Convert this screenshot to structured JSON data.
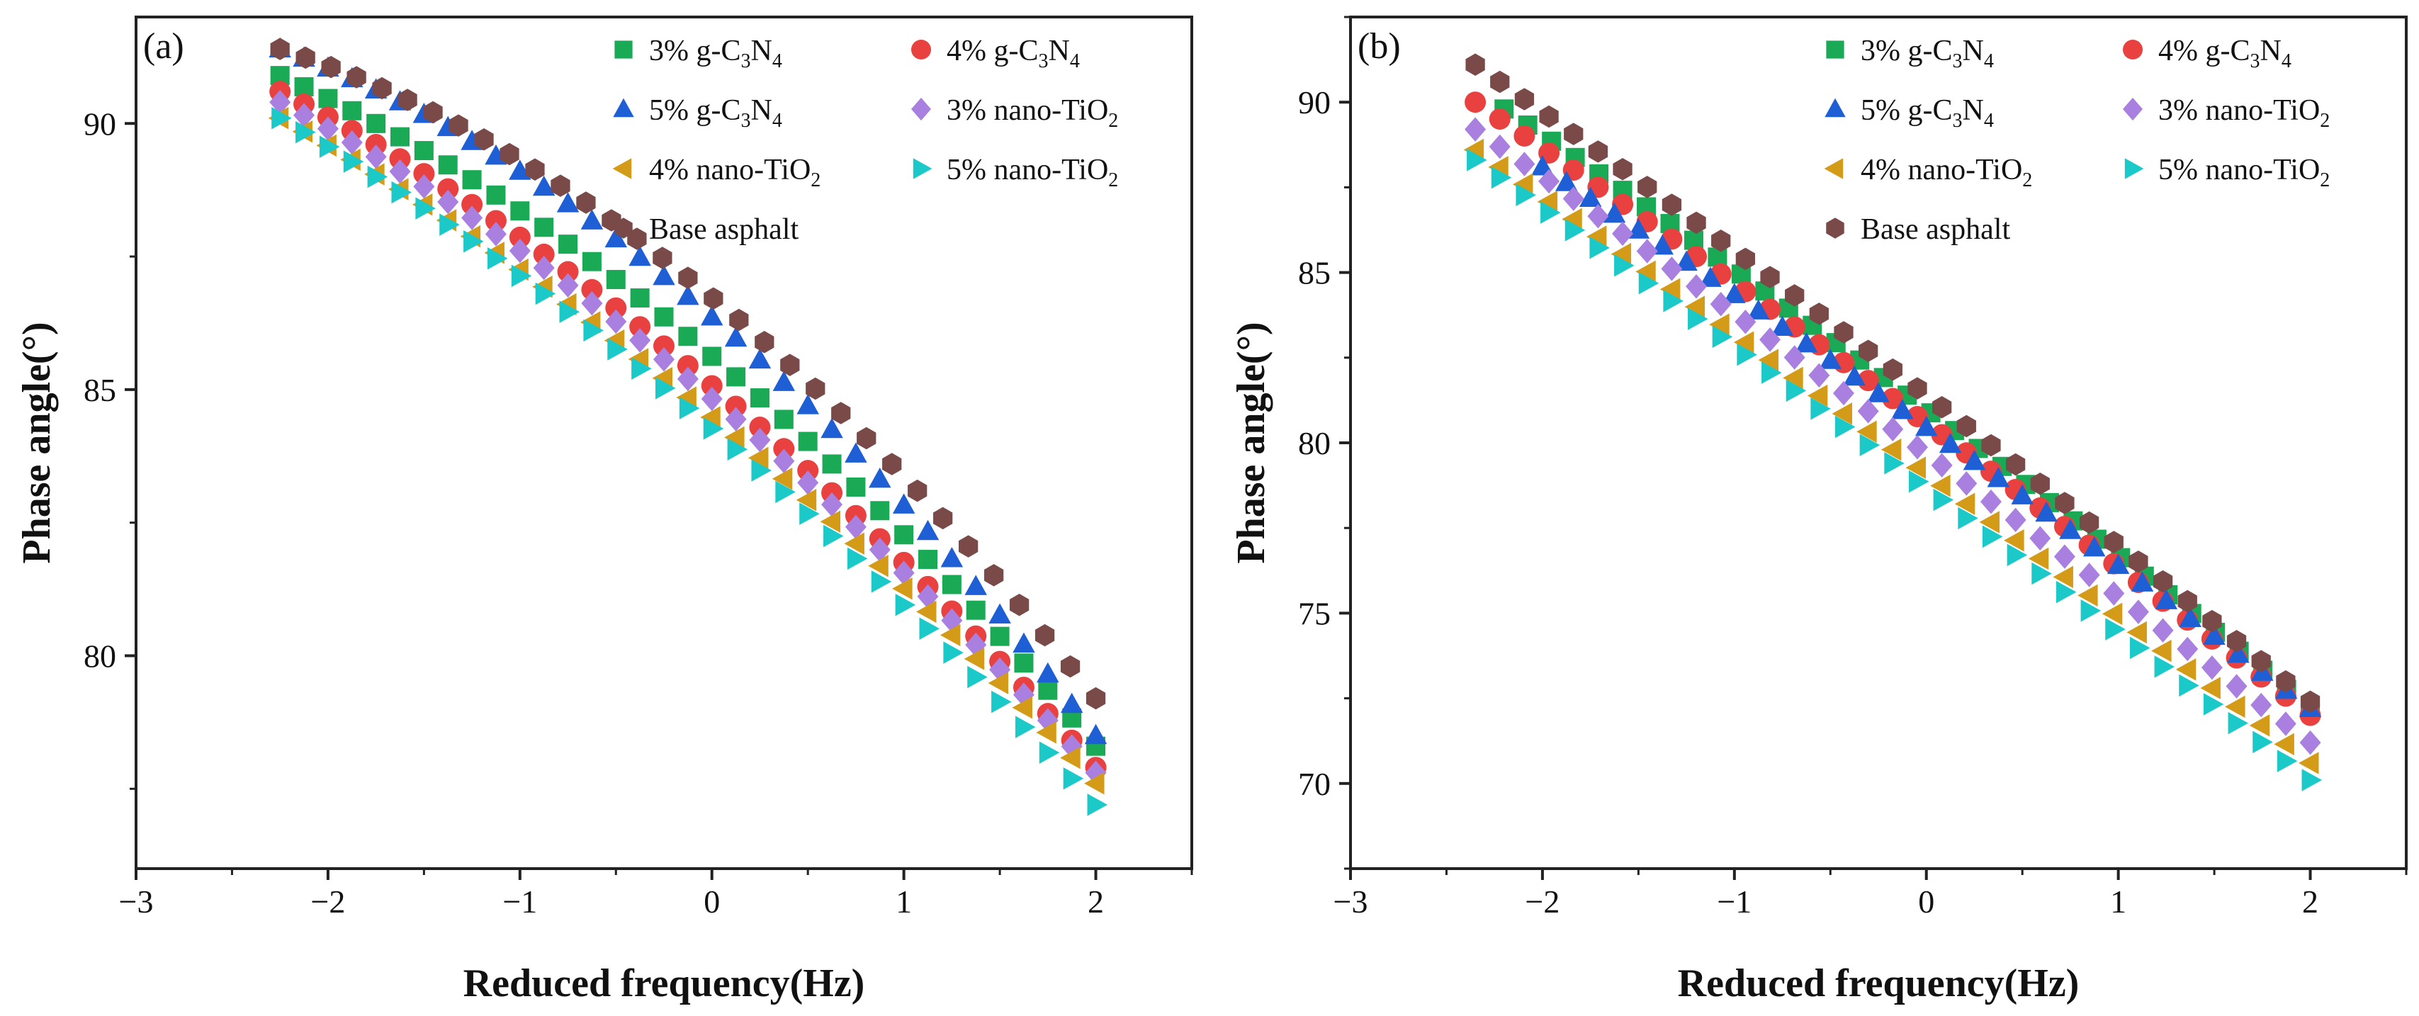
{
  "chart_data": [
    {
      "type": "scatter",
      "panel_label": "(a)",
      "xlabel": "Reduced frequency(Hz)",
      "ylabel": "Phase angle(°)",
      "xlim": [
        -3,
        2.5
      ],
      "ylim": [
        76,
        92
      ],
      "xticks": [
        -3,
        -2,
        -1,
        0,
        1,
        2
      ],
      "xtick_labels": [
        "−3",
        "−2",
        "−1",
        "0",
        "1",
        "2"
      ],
      "yticks": [
        80,
        85,
        90
      ],
      "ytick_labels": [
        "80",
        "85",
        "90"
      ],
      "legend_position": "top-right",
      "series": [
        {
          "name": "3% g-C3N4",
          "label_parts": [
            "3% g-C",
            "3",
            "N",
            "4"
          ],
          "marker": "square",
          "color": "#1aaa55",
          "start": [
            -2.25,
            90.9
          ],
          "end": [
            2.0,
            78.3
          ],
          "count": 35,
          "curve": -1.4
        },
        {
          "name": "4% g-C3N4",
          "label_parts": [
            "4% g-C",
            "3",
            "N",
            "4"
          ],
          "marker": "circle",
          "color": "#e8413f",
          "start": [
            -2.25,
            90.6
          ],
          "end": [
            2.0,
            77.9
          ],
          "count": 35,
          "curve": -1.2
        },
        {
          "name": "5% g-C3N4",
          "label_parts": [
            "5% g-C",
            "3",
            "N",
            "4"
          ],
          "marker": "triangle-up",
          "color": "#1f5fd6",
          "start": [
            -2.25,
            91.4
          ],
          "end": [
            2.0,
            78.5
          ],
          "count": 35,
          "curve": -1.8
        },
        {
          "name": "3% nano-TiO2",
          "label_parts": [
            "3% nano-TiO",
            "2",
            "",
            ""
          ],
          "marker": "diamond",
          "color": "#a97fe0",
          "start": [
            -2.25,
            90.4
          ],
          "end": [
            2.0,
            77.8
          ],
          "count": 35,
          "curve": -1.1
        },
        {
          "name": "4% nano-TiO2",
          "label_parts": [
            "4% nano-TiO",
            "2",
            "",
            ""
          ],
          "marker": "triangle-left",
          "color": "#d39b18",
          "start": [
            -2.25,
            90.1
          ],
          "end": [
            2.0,
            77.6
          ],
          "count": 35,
          "curve": -1.0
        },
        {
          "name": "5% nano-TiO2",
          "label_parts": [
            "5% nano-TiO",
            "2",
            "",
            ""
          ],
          "marker": "triangle-right",
          "color": "#1cc9c9",
          "start": [
            -2.25,
            90.1
          ],
          "end": [
            2.0,
            77.2
          ],
          "count": 35,
          "curve": -1.0
        },
        {
          "name": "Base asphalt",
          "label_parts": [
            "Base asphalt",
            "",
            "",
            ""
          ],
          "marker": "hexagon",
          "color": "#7a4a48",
          "start": [
            -2.25,
            91.4
          ],
          "end": [
            2.0,
            79.2
          ],
          "count": 33,
          "curve": -1.8
        }
      ]
    },
    {
      "type": "scatter",
      "panel_label": "(b)",
      "xlabel": "Reduced frequency(Hz)",
      "ylabel": "Phase angle(°)",
      "xlim": [
        -3,
        2.5
      ],
      "ylim": [
        67.5,
        92.5
      ],
      "xticks": [
        -3,
        -2,
        -1,
        0,
        1,
        2
      ],
      "xtick_labels": [
        "−3",
        "−2",
        "−1",
        "0",
        "1",
        "2"
      ],
      "yticks": [
        70,
        75,
        80,
        85,
        90
      ],
      "ytick_labels": [
        "70",
        "75",
        "80",
        "85",
        "90"
      ],
      "legend_position": "top-right",
      "series": [
        {
          "name": "3% g-C3N4",
          "label_parts": [
            "3% g-C",
            "3",
            "N",
            "4"
          ],
          "marker": "square",
          "color": "#1aaa55",
          "start": [
            -2.2,
            89.8
          ],
          "end": [
            2.0,
            72.2
          ],
          "count": 35,
          "curve": -0.4
        },
        {
          "name": "4% g-C3N4",
          "label_parts": [
            "4% g-C",
            "3",
            "N",
            "4"
          ],
          "marker": "circle",
          "color": "#e8413f",
          "start": [
            -2.35,
            90.0
          ],
          "end": [
            2.0,
            72.0
          ],
          "count": 35,
          "curve": -0.3
        },
        {
          "name": "5% g-C3N4",
          "label_parts": [
            "5% g-C",
            "3",
            "N",
            "4"
          ],
          "marker": "triangle-up",
          "color": "#1f5fd6",
          "start": [
            -2.0,
            88.1
          ],
          "end": [
            2.0,
            72.2
          ],
          "count": 33,
          "curve": -0.3
        },
        {
          "name": "3% nano-TiO2",
          "label_parts": [
            "3% nano-TiO",
            "2",
            "",
            ""
          ],
          "marker": "diamond",
          "color": "#a97fe0",
          "start": [
            -2.35,
            89.2
          ],
          "end": [
            2.0,
            71.2
          ],
          "count": 35,
          "curve": -0.2
        },
        {
          "name": "4% nano-TiO2",
          "label_parts": [
            "4% nano-TiO",
            "2",
            "",
            ""
          ],
          "marker": "triangle-left",
          "color": "#d39b18",
          "start": [
            -2.35,
            88.6
          ],
          "end": [
            2.0,
            70.6
          ],
          "count": 35,
          "curve": -0.2
        },
        {
          "name": "5% nano-TiO2",
          "label_parts": [
            "5% nano-TiO",
            "2",
            "",
            ""
          ],
          "marker": "triangle-right",
          "color": "#1cc9c9",
          "start": [
            -2.35,
            88.3
          ],
          "end": [
            2.0,
            70.1
          ],
          "count": 35,
          "curve": -0.2
        },
        {
          "name": "Base asphalt",
          "label_parts": [
            "Base asphalt",
            "",
            "",
            ""
          ],
          "marker": "hexagon",
          "color": "#7a4a48",
          "start": [
            -2.35,
            91.1
          ],
          "end": [
            2.0,
            72.4
          ],
          "count": 35,
          "curve": -0.4
        }
      ]
    }
  ]
}
